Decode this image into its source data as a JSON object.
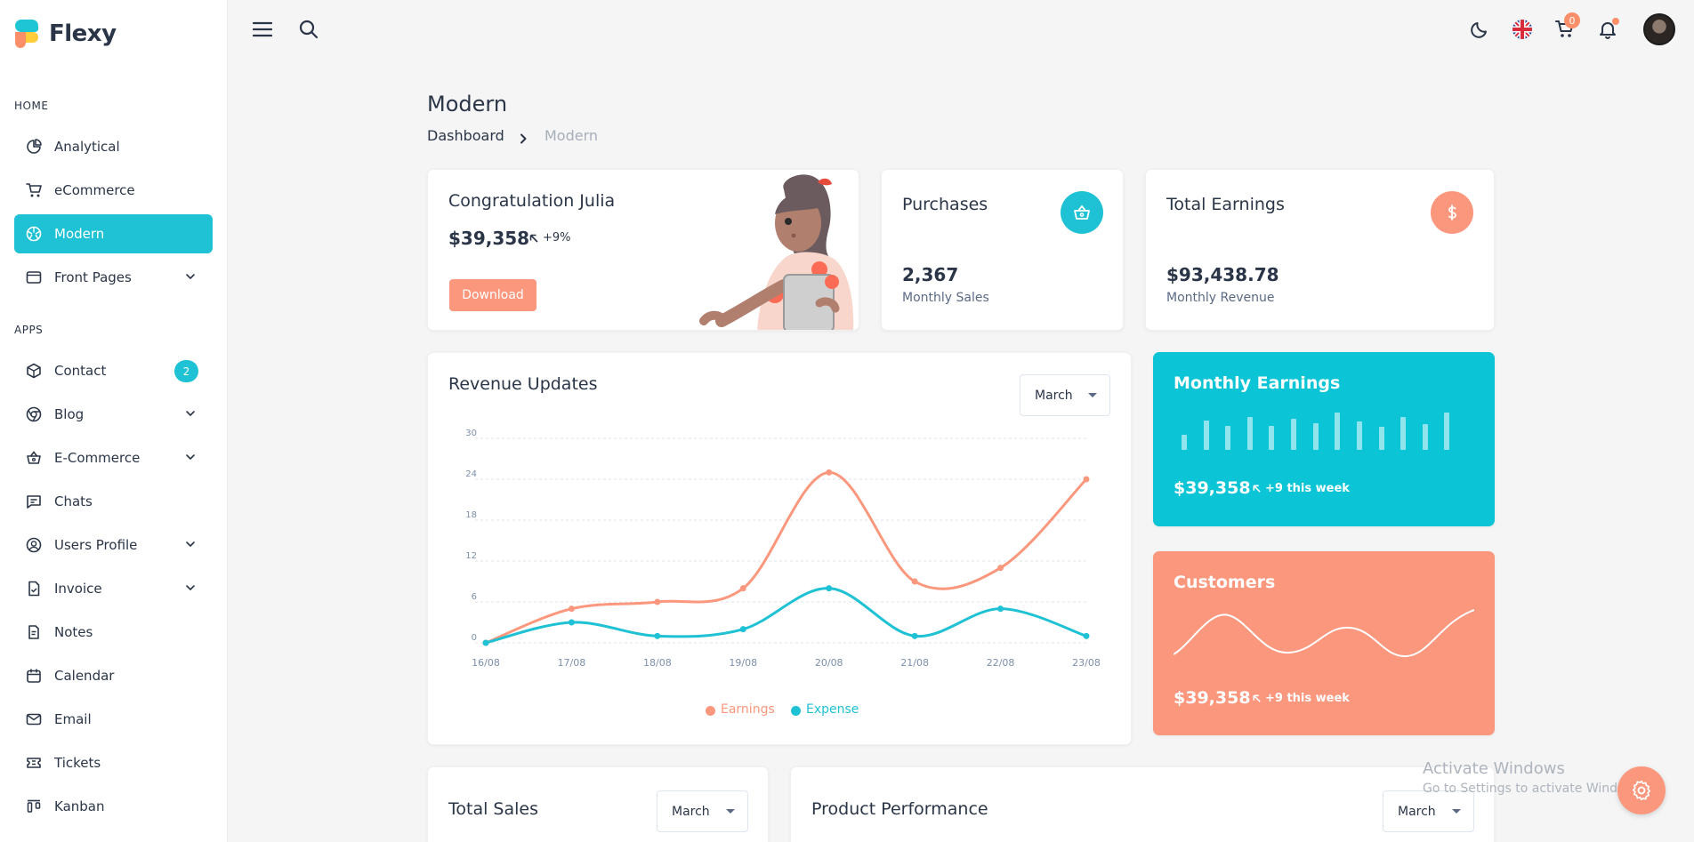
{
  "app": {
    "name": "Flexy"
  },
  "sidebar": {
    "headings": {
      "home": "HOME",
      "apps": "APPS"
    },
    "home_items": [
      {
        "label": "Analytical",
        "icon": "pie-chart-icon"
      },
      {
        "label": "eCommerce",
        "icon": "cart-icon"
      },
      {
        "label": "Modern",
        "icon": "aperture-icon",
        "active": true
      },
      {
        "label": "Front Pages",
        "icon": "layout-icon",
        "expandable": true
      }
    ],
    "app_items": [
      {
        "label": "Contact",
        "icon": "box-icon",
        "badge": "2"
      },
      {
        "label": "Blog",
        "icon": "chrome-icon",
        "expandable": true
      },
      {
        "label": "E-Commerce",
        "icon": "basket-icon",
        "expandable": true
      },
      {
        "label": "Chats",
        "icon": "message-icon"
      },
      {
        "label": "Users Profile",
        "icon": "user-circle-icon",
        "expandable": true
      },
      {
        "label": "Invoice",
        "icon": "file-check-icon",
        "expandable": true
      },
      {
        "label": "Notes",
        "icon": "notes-icon"
      },
      {
        "label": "Calendar",
        "icon": "calendar-icon"
      },
      {
        "label": "Email",
        "icon": "mail-icon"
      },
      {
        "label": "Tickets",
        "icon": "ticket-icon"
      },
      {
        "label": "Kanban",
        "icon": "kanban-icon"
      }
    ]
  },
  "topbar": {
    "cart_count": "0"
  },
  "page": {
    "title": "Modern",
    "breadcrumb": {
      "parent": "Dashboard",
      "current": "Modern"
    }
  },
  "welcome": {
    "title": "Congratulation Julia",
    "amount": "$39,358",
    "change": "+9%",
    "button": "Download"
  },
  "purchases": {
    "title": "Purchases",
    "value": "2,367",
    "caption": "Monthly Sales"
  },
  "earnings": {
    "title": "Total Earnings",
    "value": "$93,438.78",
    "caption": "Monthly Revenue"
  },
  "revenue": {
    "title": "Revenue Updates",
    "select": "March",
    "legend": {
      "earnings": "Earnings",
      "expense": "Expense"
    }
  },
  "monthly_earnings": {
    "title": "Monthly Earnings",
    "amount": "$39,358",
    "change": "+9 this week",
    "bars": [
      0.38,
      0.75,
      0.62,
      0.85,
      0.62,
      0.8,
      0.68,
      0.95,
      0.72,
      0.58,
      0.85,
      0.65,
      0.95
    ]
  },
  "customers": {
    "title": "Customers",
    "amount": "$39,358",
    "change": "+9 this week"
  },
  "total_sales": {
    "title": "Total Sales",
    "select": "March"
  },
  "product_performance": {
    "title": "Product Performance",
    "select": "March"
  },
  "watermark": {
    "line1": "Activate Windows",
    "line2": "Go to Settings to activate Windows."
  },
  "colors": {
    "primary": "#1fc1d4",
    "secondary": "#fb977d",
    "text": "#2a3547"
  },
  "chart_data": {
    "type": "line",
    "x": [
      "16/08",
      "17/08",
      "18/08",
      "19/08",
      "20/08",
      "21/08",
      "22/08",
      "23/08"
    ],
    "yticks": [
      "0",
      "6",
      "12",
      "18",
      "24",
      "30"
    ],
    "ylim": [
      0,
      30
    ],
    "series": [
      {
        "name": "Earnings",
        "color": "#fb977d",
        "values": [
          0,
          5,
          6,
          8,
          25,
          9,
          11,
          24
        ]
      },
      {
        "name": "Expense",
        "color": "#1fc1d4",
        "values": [
          0,
          3,
          1,
          2,
          8,
          1,
          5,
          1
        ]
      }
    ],
    "grid": true,
    "legend": "bottom-center"
  }
}
